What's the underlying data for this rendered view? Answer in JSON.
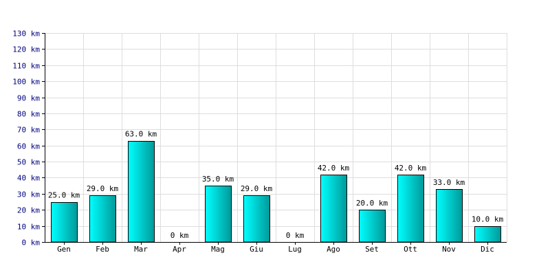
{
  "chart_data": {
    "type": "bar",
    "title": "",
    "xlabel": "",
    "ylabel": "",
    "categories": [
      "Gen",
      "Feb",
      "Mar",
      "Apr",
      "Mag",
      "Giu",
      "Lug",
      "Ago",
      "Set",
      "Ott",
      "Nov",
      "Dic"
    ],
    "values": [
      25.0,
      29.0,
      63.0,
      0,
      35.0,
      29.0,
      0,
      42.0,
      20.0,
      42.0,
      33.0,
      10.0
    ],
    "value_labels": [
      "25.0 km",
      "29.0 km",
      "63.0 km",
      "0 km",
      "35.0 km",
      "29.0 km",
      "0 km",
      "42.0 km",
      "20.0 km",
      "42.0 km",
      "33.0 km",
      "10.0 km"
    ],
    "ylim": [
      0,
      130
    ],
    "ytick_values": [
      0,
      10,
      20,
      30,
      40,
      50,
      60,
      70,
      80,
      90,
      100,
      110,
      120,
      130
    ],
    "ytick_labels": [
      "0 km",
      "10 km",
      "20 km",
      "30 km",
      "40 km",
      "50 km",
      "60 km",
      "70 km",
      "80 km",
      "90 km",
      "100 km",
      "110 km",
      "120 km",
      "130 km"
    ],
    "grid": true,
    "legend": "none",
    "colors": {
      "bar_light": "#00ffff",
      "bar_dark": "#009999",
      "bar_stroke": "#000000",
      "grid": "#dddddd",
      "axis": "#000000",
      "ytick_text": "#000080"
    }
  }
}
